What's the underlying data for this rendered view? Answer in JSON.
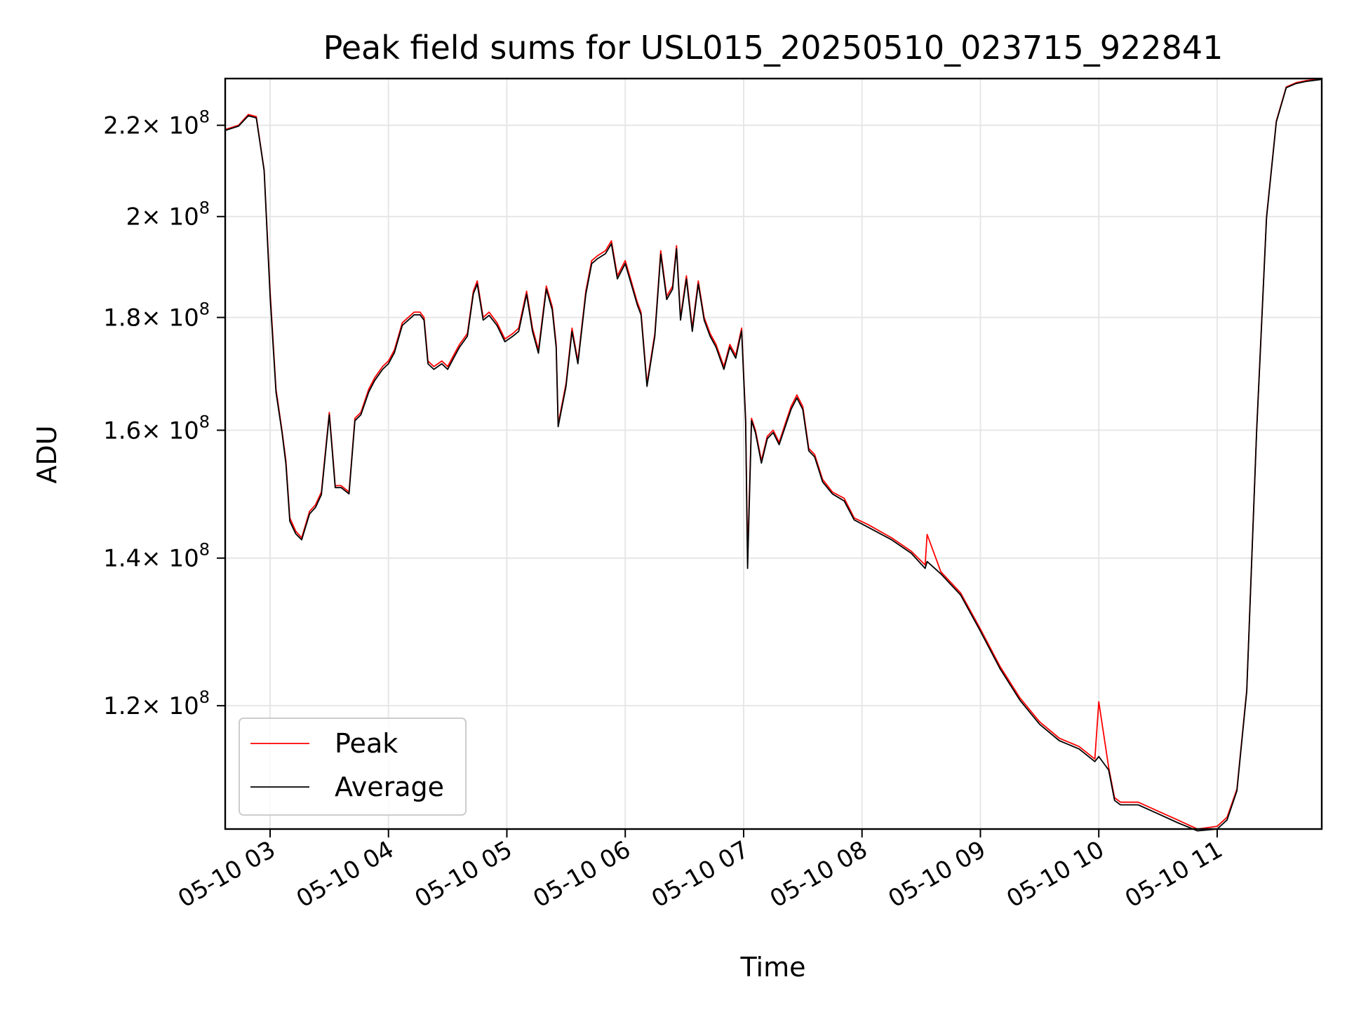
{
  "chart_data": {
    "type": "line",
    "title": "Peak field sums for USL015_20250510_023715_922841",
    "xlabel": "Time",
    "ylabel": "ADU",
    "yscale": "log",
    "grid": true,
    "legend_position": "lower-left",
    "xlim": [
      "2025-05-10T02:37:15",
      "2025-05-10T11:53:00"
    ],
    "ylim": [
      105500000,
      231000000
    ],
    "x_ticks": [
      "2025-05-10T03:00",
      "2025-05-10T04:00",
      "2025-05-10T05:00",
      "2025-05-10T06:00",
      "2025-05-10T07:00",
      "2025-05-10T08:00",
      "2025-05-10T09:00",
      "2025-05-10T10:00",
      "2025-05-10T11:00"
    ],
    "x_tick_labels": [
      "05-10 03",
      "05-10 04",
      "05-10 05",
      "05-10 06",
      "05-10 07",
      "05-10 08",
      "05-10 09",
      "05-10 10",
      "05-10 11"
    ],
    "y_ticks": [
      {
        "value": 120000000,
        "mantissa": "1.2",
        "exp": "8"
      },
      {
        "value": 140000000,
        "mantissa": "1.4",
        "exp": "8"
      },
      {
        "value": 160000000,
        "mantissa": "1.6",
        "exp": "8"
      },
      {
        "value": 180000000,
        "mantissa": "1.8",
        "exp": "8"
      },
      {
        "value": 200000000,
        "mantissa": "2",
        "exp": "8"
      },
      {
        "value": 220000000,
        "mantissa": "2.2",
        "exp": "8"
      }
    ],
    "y_tick_times": "× 10",
    "series": [
      {
        "name": "Peak",
        "color": "#ff0000",
        "x": [
          "2025-05-10T02:37",
          "2025-05-10T02:44",
          "2025-05-10T02:49",
          "2025-05-10T02:53",
          "2025-05-10T02:57",
          "2025-05-10T03:00",
          "2025-05-10T03:03",
          "2025-05-10T03:06",
          "2025-05-10T03:08",
          "2025-05-10T03:10",
          "2025-05-10T03:13",
          "2025-05-10T03:16",
          "2025-05-10T03:20",
          "2025-05-10T03:23",
          "2025-05-10T03:26",
          "2025-05-10T03:30",
          "2025-05-10T03:32",
          "2025-05-10T03:33",
          "2025-05-10T03:36",
          "2025-05-10T03:40",
          "2025-05-10T03:43",
          "2025-05-10T03:46",
          "2025-05-10T03:50",
          "2025-05-10T03:53",
          "2025-05-10T03:57",
          "2025-05-10T04:00",
          "2025-05-10T04:03",
          "2025-05-10T04:07",
          "2025-05-10T04:10",
          "2025-05-10T04:13",
          "2025-05-10T04:16",
          "2025-05-10T04:18",
          "2025-05-10T04:20",
          "2025-05-10T04:23",
          "2025-05-10T04:27",
          "2025-05-10T04:30",
          "2025-05-10T04:33",
          "2025-05-10T04:36",
          "2025-05-10T04:40",
          "2025-05-10T04:43",
          "2025-05-10T04:45",
          "2025-05-10T04:48",
          "2025-05-10T04:51",
          "2025-05-10T04:55",
          "2025-05-10T04:59",
          "2025-05-10T05:03",
          "2025-05-10T05:06",
          "2025-05-10T05:10",
          "2025-05-10T05:13",
          "2025-05-10T05:16",
          "2025-05-10T05:20",
          "2025-05-10T05:23",
          "2025-05-10T05:25",
          "2025-05-10T05:26",
          "2025-05-10T05:30",
          "2025-05-10T05:33",
          "2025-05-10T05:36",
          "2025-05-10T05:40",
          "2025-05-10T05:43",
          "2025-05-10T05:46",
          "2025-05-10T05:50",
          "2025-05-10T05:53",
          "2025-05-10T05:56",
          "2025-05-10T06:00",
          "2025-05-10T06:03",
          "2025-05-10T06:06",
          "2025-05-10T06:08",
          "2025-05-10T06:11",
          "2025-05-10T06:15",
          "2025-05-10T06:18",
          "2025-05-10T06:21",
          "2025-05-10T06:24",
          "2025-05-10T06:26",
          "2025-05-10T06:28",
          "2025-05-10T06:31",
          "2025-05-10T06:34",
          "2025-05-10T06:37",
          "2025-05-10T06:40",
          "2025-05-10T06:43",
          "2025-05-10T06:46",
          "2025-05-10T06:50",
          "2025-05-10T06:53",
          "2025-05-10T06:56",
          "2025-05-10T06:59",
          "2025-05-10T07:01",
          "2025-05-10T07:02",
          "2025-05-10T07:04",
          "2025-05-10T07:06",
          "2025-05-10T07:09",
          "2025-05-10T07:12",
          "2025-05-10T07:15",
          "2025-05-10T07:18",
          "2025-05-10T07:21",
          "2025-05-10T07:24",
          "2025-05-10T07:27",
          "2025-05-10T07:30",
          "2025-05-10T07:33",
          "2025-05-10T07:36",
          "2025-05-10T07:40",
          "2025-05-10T07:45",
          "2025-05-10T07:51",
          "2025-05-10T07:56",
          "2025-05-10T08:03",
          "2025-05-10T08:15",
          "2025-05-10T08:25",
          "2025-05-10T08:32",
          "2025-05-10T08:33",
          "2025-05-10T08:40",
          "2025-05-10T08:50",
          "2025-05-10T09:00",
          "2025-05-10T09:10",
          "2025-05-10T09:20",
          "2025-05-10T09:30",
          "2025-05-10T09:40",
          "2025-05-10T09:50",
          "2025-05-10T09:58",
          "2025-05-10T10:00",
          "2025-05-10T10:05",
          "2025-05-10T10:08",
          "2025-05-10T10:11",
          "2025-05-10T10:20",
          "2025-05-10T10:30",
          "2025-05-10T10:40",
          "2025-05-10T10:50",
          "2025-05-10T11:00",
          "2025-05-10T11:05",
          "2025-05-10T11:10",
          "2025-05-10T11:15",
          "2025-05-10T11:20",
          "2025-05-10T11:25",
          "2025-05-10T11:30",
          "2025-05-10T11:35",
          "2025-05-10T11:40",
          "2025-05-10T11:45",
          "2025-05-10T11:53"
        ],
        "y": [
          219000000,
          220000000,
          222500000,
          222000000,
          210000000,
          185000000,
          167000000,
          160000000,
          155000000,
          146000000,
          144000000,
          143000000,
          147000000,
          148000000,
          150000000,
          163000000,
          155000000,
          151000000,
          151000000,
          150000000,
          162000000,
          163000000,
          167000000,
          169000000,
          171000000,
          172000000,
          174000000,
          179000000,
          180000000,
          181000000,
          181000000,
          180000000,
          172000000,
          171000000,
          172000000,
          171000000,
          173000000,
          175000000,
          177000000,
          185000000,
          187000000,
          180000000,
          181000000,
          179000000,
          176000000,
          177000000,
          178000000,
          185000000,
          178000000,
          174000000,
          186000000,
          182000000,
          175000000,
          161000000,
          168000000,
          178000000,
          172000000,
          185000000,
          191000000,
          192000000,
          193000000,
          195000000,
          188000000,
          191000000,
          187000000,
          183000000,
          181000000,
          168000000,
          177000000,
          193000000,
          184000000,
          186000000,
          194000000,
          180000000,
          188000000,
          178000000,
          187000000,
          180000000,
          177000000,
          175000000,
          171000000,
          175000000,
          173000000,
          178000000,
          162000000,
          140000000,
          162000000,
          160000000,
          155000000,
          159000000,
          160000000,
          158000000,
          161000000,
          164000000,
          166000000,
          164000000,
          157000000,
          156000000,
          152000000,
          150000000,
          149000000,
          146000000,
          145000000,
          143000000,
          141000000,
          139000000,
          143500000,
          138000000,
          135000000,
          130000000,
          125000000,
          121000000,
          118000000,
          116000000,
          115000000,
          113500000,
          120500000,
          112500000,
          109000000,
          108500000,
          108500000,
          107500000,
          106500000,
          105500000,
          105800000,
          106800000,
          110000000,
          122000000,
          160000000,
          200000000,
          221000000,
          229000000,
          230000000,
          230500000,
          231000000
        ]
      },
      {
        "name": "Average",
        "color": "#000000",
        "x": [
          "2025-05-10T02:37",
          "2025-05-10T02:44",
          "2025-05-10T02:49",
          "2025-05-10T02:53",
          "2025-05-10T02:57",
          "2025-05-10T03:00",
          "2025-05-10T03:03",
          "2025-05-10T03:06",
          "2025-05-10T03:08",
          "2025-05-10T03:10",
          "2025-05-10T03:13",
          "2025-05-10T03:16",
          "2025-05-10T03:20",
          "2025-05-10T03:23",
          "2025-05-10T03:26",
          "2025-05-10T03:30",
          "2025-05-10T03:32",
          "2025-05-10T03:33",
          "2025-05-10T03:36",
          "2025-05-10T03:40",
          "2025-05-10T03:43",
          "2025-05-10T03:46",
          "2025-05-10T03:50",
          "2025-05-10T03:53",
          "2025-05-10T03:57",
          "2025-05-10T04:00",
          "2025-05-10T04:03",
          "2025-05-10T04:07",
          "2025-05-10T04:10",
          "2025-05-10T04:13",
          "2025-05-10T04:16",
          "2025-05-10T04:18",
          "2025-05-10T04:20",
          "2025-05-10T04:23",
          "2025-05-10T04:27",
          "2025-05-10T04:30",
          "2025-05-10T04:33",
          "2025-05-10T04:36",
          "2025-05-10T04:40",
          "2025-05-10T04:43",
          "2025-05-10T04:45",
          "2025-05-10T04:48",
          "2025-05-10T04:51",
          "2025-05-10T04:55",
          "2025-05-10T04:59",
          "2025-05-10T05:03",
          "2025-05-10T05:06",
          "2025-05-10T05:10",
          "2025-05-10T05:13",
          "2025-05-10T05:16",
          "2025-05-10T05:20",
          "2025-05-10T05:23",
          "2025-05-10T05:25",
          "2025-05-10T05:26",
          "2025-05-10T05:30",
          "2025-05-10T05:33",
          "2025-05-10T05:36",
          "2025-05-10T05:40",
          "2025-05-10T05:43",
          "2025-05-10T05:46",
          "2025-05-10T05:50",
          "2025-05-10T05:53",
          "2025-05-10T05:56",
          "2025-05-10T06:00",
          "2025-05-10T06:03",
          "2025-05-10T06:06",
          "2025-05-10T06:08",
          "2025-05-10T06:11",
          "2025-05-10T06:15",
          "2025-05-10T06:18",
          "2025-05-10T06:21",
          "2025-05-10T06:24",
          "2025-05-10T06:26",
          "2025-05-10T06:28",
          "2025-05-10T06:31",
          "2025-05-10T06:34",
          "2025-05-10T06:37",
          "2025-05-10T06:40",
          "2025-05-10T06:43",
          "2025-05-10T06:46",
          "2025-05-10T06:50",
          "2025-05-10T06:53",
          "2025-05-10T06:56",
          "2025-05-10T06:59",
          "2025-05-10T07:01",
          "2025-05-10T07:02",
          "2025-05-10T07:04",
          "2025-05-10T07:06",
          "2025-05-10T07:09",
          "2025-05-10T07:12",
          "2025-05-10T07:15",
          "2025-05-10T07:18",
          "2025-05-10T07:21",
          "2025-05-10T07:24",
          "2025-05-10T07:27",
          "2025-05-10T07:30",
          "2025-05-10T07:33",
          "2025-05-10T07:36",
          "2025-05-10T07:40",
          "2025-05-10T07:45",
          "2025-05-10T07:51",
          "2025-05-10T07:56",
          "2025-05-10T08:03",
          "2025-05-10T08:15",
          "2025-05-10T08:25",
          "2025-05-10T08:32",
          "2025-05-10T08:33",
          "2025-05-10T08:40",
          "2025-05-10T08:50",
          "2025-05-10T09:00",
          "2025-05-10T09:10",
          "2025-05-10T09:20",
          "2025-05-10T09:30",
          "2025-05-10T09:40",
          "2025-05-10T09:50",
          "2025-05-10T09:58",
          "2025-05-10T10:00",
          "2025-05-10T10:05",
          "2025-05-10T10:08",
          "2025-05-10T10:11",
          "2025-05-10T10:20",
          "2025-05-10T10:30",
          "2025-05-10T10:40",
          "2025-05-10T10:50",
          "2025-05-10T11:00",
          "2025-05-10T11:05",
          "2025-05-10T11:10",
          "2025-05-10T11:15",
          "2025-05-10T11:20",
          "2025-05-10T11:25",
          "2025-05-10T11:30",
          "2025-05-10T11:35",
          "2025-05-10T11:40",
          "2025-05-10T11:45",
          "2025-05-10T11:53"
        ],
        "y": [
          218800000,
          219800000,
          222200000,
          221700000,
          209800000,
          184000000,
          166500000,
          159700000,
          154500000,
          145500000,
          143600000,
          142700000,
          146600000,
          147600000,
          149600000,
          162600000,
          154600000,
          150700000,
          150700000,
          149700000,
          161600000,
          162600000,
          166500000,
          168500000,
          170500000,
          171500000,
          173500000,
          178500000,
          179500000,
          180500000,
          180500000,
          179500000,
          171500000,
          170500000,
          171500000,
          170500000,
          172500000,
          174500000,
          176500000,
          184500000,
          186400000,
          179500000,
          180400000,
          178500000,
          175500000,
          176500000,
          177400000,
          184400000,
          177400000,
          173400000,
          185400000,
          181400000,
          174400000,
          160600000,
          167500000,
          177400000,
          171500000,
          184400000,
          190400000,
          191400000,
          192400000,
          194400000,
          187400000,
          190400000,
          186400000,
          182500000,
          180500000,
          167500000,
          176500000,
          192300000,
          183400000,
          185400000,
          193400000,
          179500000,
          187400000,
          177400000,
          186400000,
          179500000,
          176500000,
          174500000,
          170500000,
          174500000,
          172500000,
          177500000,
          161500000,
          138500000,
          161600000,
          159600000,
          154600000,
          158600000,
          159600000,
          157600000,
          160500000,
          163500000,
          165500000,
          163500000,
          156600000,
          155600000,
          151600000,
          149700000,
          148600000,
          145700000,
          144600000,
          142700000,
          140700000,
          138500000,
          139500000,
          137700000,
          134700000,
          129700000,
          124700000,
          120700000,
          117700000,
          115700000,
          114700000,
          113200000,
          113800000,
          112200000,
          108700000,
          108200000,
          108200000,
          107200000,
          106200000,
          105300000,
          105500000,
          106500000,
          109800000,
          121800000,
          159800000,
          199700000,
          220800000,
          228800000,
          229800000,
          230300000,
          230800000
        ]
      }
    ]
  }
}
